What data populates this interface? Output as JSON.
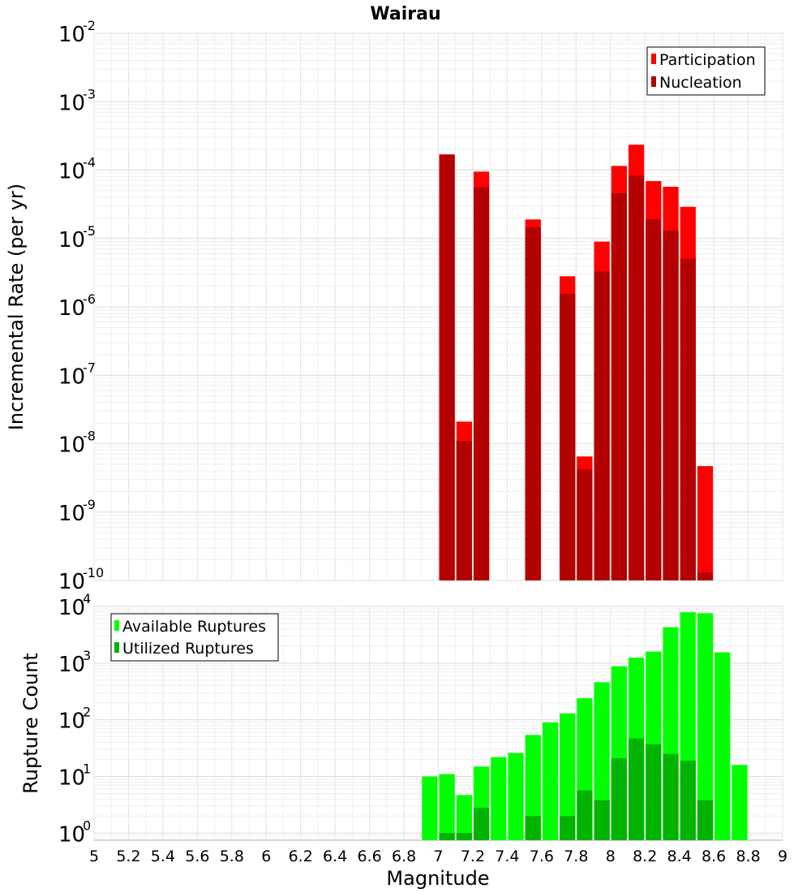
{
  "chart_data": [
    {
      "type": "bar",
      "title": "Wairau",
      "xlabel": "",
      "ylabel": "Incremental Rate (per yr)",
      "yscale": "log",
      "ylim": [
        1e-10,
        0.01
      ],
      "xlim": [
        5,
        9
      ],
      "grid": true,
      "legend_position": "top-right",
      "bar_width": 0.1,
      "series": [
        {
          "name": "Participation",
          "color": "#ff0000",
          "x": [
            7.05,
            7.15,
            7.25,
            7.55,
            7.75,
            7.85,
            7.95,
            8.05,
            8.15,
            8.25,
            8.35,
            8.45,
            8.55
          ],
          "values": [
            0.00017,
            2.1e-08,
            9.5e-05,
            1.9e-05,
            2.8e-06,
            6.5e-09,
            9e-06,
            0.000115,
            0.000235,
            6.9e-05,
            5.7e-05,
            2.9e-05,
            4.7e-09
          ]
        },
        {
          "name": "Nucleation",
          "color": "#b30000",
          "x": [
            7.05,
            7.15,
            7.25,
            7.55,
            7.75,
            7.85,
            7.95,
            8.05,
            8.15,
            8.25,
            8.35,
            8.45,
            8.55
          ],
          "values": [
            0.000165,
            1.1e-08,
            5.6e-05,
            1.45e-05,
            1.55e-06,
            4.2e-09,
            3.3e-06,
            4.6e-05,
            8.3e-05,
            1.9e-05,
            1.3e-05,
            5.1e-06,
            1.3e-10
          ]
        }
      ]
    },
    {
      "type": "bar",
      "title": "",
      "xlabel": "Magnitude",
      "ylabel": "Rupture Count",
      "yscale": "log",
      "ylim": [
        0.75,
        10000
      ],
      "xlim": [
        5,
        9
      ],
      "grid": true,
      "legend_position": "top-left",
      "bar_width": 0.1,
      "series": [
        {
          "name": "Available Ruptures",
          "color": "#00ff00",
          "x": [
            6.95,
            7.05,
            7.15,
            7.25,
            7.35,
            7.45,
            7.55,
            7.65,
            7.75,
            7.85,
            7.95,
            8.05,
            8.15,
            8.25,
            8.35,
            8.45,
            8.55,
            8.65,
            8.75
          ],
          "values": [
            10,
            11,
            4.7,
            15,
            22,
            26,
            54,
            90,
            130,
            240,
            460,
            880,
            1250,
            1600,
            4300,
            7900,
            7600,
            1550,
            16
          ]
        },
        {
          "name": "Utilized Ruptures",
          "color": "#00b300",
          "x": [
            7.05,
            7.15,
            7.25,
            7.55,
            7.75,
            7.85,
            7.95,
            8.05,
            8.15,
            8.25,
            8.35,
            8.45,
            8.55
          ],
          "values": [
            1,
            1,
            2.8,
            2,
            2,
            5.7,
            3.8,
            21,
            47,
            37,
            25,
            19,
            3.8
          ]
        }
      ],
      "x_ticks": [
        "5",
        "5.2",
        "5.4",
        "5.6",
        "5.8",
        "6",
        "6.2",
        "6.4",
        "6.6",
        "6.8",
        "7",
        "7.2",
        "7.4",
        "7.6",
        "7.8",
        "8",
        "8.2",
        "8.4",
        "8.6",
        "8.8",
        "9"
      ]
    }
  ]
}
